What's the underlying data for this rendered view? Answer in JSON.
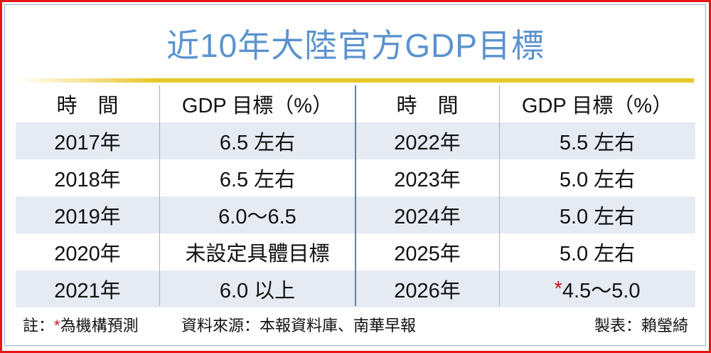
{
  "title": "近10年大陸官方GDP目標",
  "headers": {
    "time": "時　間",
    "goal": "GDP 目標（%）"
  },
  "left_rows": [
    {
      "year": "2017年",
      "goal": "6.5 左右"
    },
    {
      "year": "2018年",
      "goal": "6.5 左右"
    },
    {
      "year": "2019年",
      "goal": "6.0～6.5"
    },
    {
      "year": "2020年",
      "goal": "未設定具體目標"
    },
    {
      "year": "2021年",
      "goal": "6.0 以上"
    }
  ],
  "right_rows": [
    {
      "year": "2022年",
      "goal": "5.5 左右"
    },
    {
      "year": "2023年",
      "goal": "5.0 左右"
    },
    {
      "year": "2024年",
      "goal": "5.0 左右"
    },
    {
      "year": "2025年",
      "goal": "5.0 左右"
    },
    {
      "year": "2026年",
      "star": "*",
      "goal": "4.5～5.0"
    }
  ],
  "footer": {
    "note_label": "註：",
    "star": "*",
    "note_text": "為機構預測",
    "source": "資料來源：本報資料庫、南華早報",
    "credit": "製表：賴瑩綺"
  }
}
